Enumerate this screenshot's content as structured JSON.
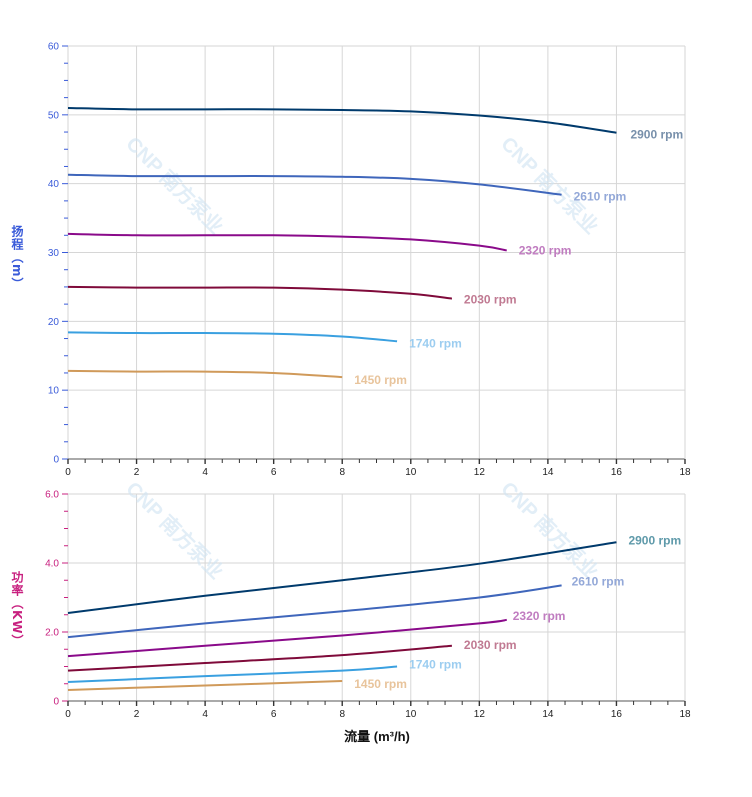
{
  "watermark": "CNP 南方泵业",
  "chart_data": [
    {
      "type": "line",
      "ylabel": "扬程（m）",
      "ylabel_color": "#3a5bd9",
      "ylim": [
        0,
        60
      ],
      "yticks": [
        "0",
        "10",
        "20",
        "30",
        "40",
        "50",
        "60"
      ],
      "xlim": [
        0,
        18
      ],
      "xticks": [
        "0",
        "2",
        "4",
        "6",
        "8",
        "10",
        "12",
        "14",
        "16",
        "18"
      ],
      "grid": true,
      "series": [
        {
          "name": "2900 rpm",
          "color": "#003a6c",
          "label_color": "#7890ab",
          "x": [
            0,
            2,
            4,
            6,
            8,
            10,
            12,
            14,
            16
          ],
          "y": [
            51,
            50.8,
            50.8,
            50.8,
            50.7,
            50.5,
            49.9,
            48.9,
            47.4
          ]
        },
        {
          "name": "2610 rpm",
          "color": "#3f66bb",
          "label_color": "#93a8d8",
          "x": [
            0,
            2,
            4,
            6,
            8,
            10,
            12,
            14.4
          ],
          "y": [
            41.3,
            41.1,
            41.1,
            41.1,
            41.0,
            40.7,
            39.9,
            38.4
          ]
        },
        {
          "name": "2320 rpm",
          "color": "#8a0a8a",
          "label_color": "#c07cc0",
          "x": [
            0,
            2,
            4,
            6,
            8,
            10,
            12,
            12.8
          ],
          "y": [
            32.7,
            32.5,
            32.5,
            32.5,
            32.3,
            31.9,
            31.0,
            30.3
          ]
        },
        {
          "name": "2030 rpm",
          "color": "#7f0a3a",
          "label_color": "#c07a92",
          "x": [
            0,
            2,
            4,
            6,
            8,
            10,
            11.2
          ],
          "y": [
            25.0,
            24.9,
            24.9,
            24.9,
            24.6,
            24.0,
            23.3
          ]
        },
        {
          "name": "1740 rpm",
          "color": "#3aa0e0",
          "label_color": "#9ccdf0",
          "x": [
            0,
            2,
            4,
            6,
            8,
            9.6
          ],
          "y": [
            18.4,
            18.3,
            18.3,
            18.2,
            17.8,
            17.1
          ]
        },
        {
          "name": "1450 rpm",
          "color": "#d09a5a",
          "label_color": "#e8c49c",
          "x": [
            0,
            2,
            4,
            6,
            8
          ],
          "y": [
            12.8,
            12.7,
            12.7,
            12.5,
            11.9
          ]
        }
      ]
    },
    {
      "type": "line",
      "ylabel": "功率（KW）",
      "ylabel_color": "#c8207f",
      "xlabel": "流量 (m³/h)",
      "ylim": [
        0,
        6
      ],
      "yticks": [
        "0",
        "2.0",
        "4.0",
        "6.0"
      ],
      "xlim": [
        0,
        18
      ],
      "xticks": [
        "0",
        "2",
        "4",
        "6",
        "8",
        "10",
        "12",
        "14",
        "16",
        "18"
      ],
      "grid": true,
      "series": [
        {
          "name": "2900 rpm",
          "color": "#003a6c",
          "label_color": "#5f9aaa",
          "x": [
            0,
            4,
            8,
            12,
            16
          ],
          "y": [
            2.55,
            3.05,
            3.5,
            3.98,
            4.6
          ]
        },
        {
          "name": "2610 rpm",
          "color": "#3f66bb",
          "label_color": "#93a8d8",
          "x": [
            0,
            4,
            8,
            12,
            14.4
          ],
          "y": [
            1.85,
            2.25,
            2.6,
            3.0,
            3.35
          ]
        },
        {
          "name": "2320 rpm",
          "color": "#8a0a8a",
          "label_color": "#c07cc0",
          "x": [
            0,
            4,
            8,
            12,
            12.8
          ],
          "y": [
            1.3,
            1.6,
            1.9,
            2.25,
            2.35
          ]
        },
        {
          "name": "2030 rpm",
          "color": "#7f0a3a",
          "label_color": "#c07a92",
          "x": [
            0,
            4,
            8,
            11.2
          ],
          "y": [
            0.88,
            1.1,
            1.33,
            1.6
          ]
        },
        {
          "name": "1740 rpm",
          "color": "#3aa0e0",
          "label_color": "#9ccdf0",
          "x": [
            0,
            4,
            8,
            9.6
          ],
          "y": [
            0.55,
            0.72,
            0.88,
            1.0
          ]
        },
        {
          "name": "1450 rpm",
          "color": "#d09a5a",
          "label_color": "#e8c49c",
          "x": [
            0,
            4,
            8
          ],
          "y": [
            0.32,
            0.45,
            0.58
          ]
        }
      ]
    }
  ]
}
